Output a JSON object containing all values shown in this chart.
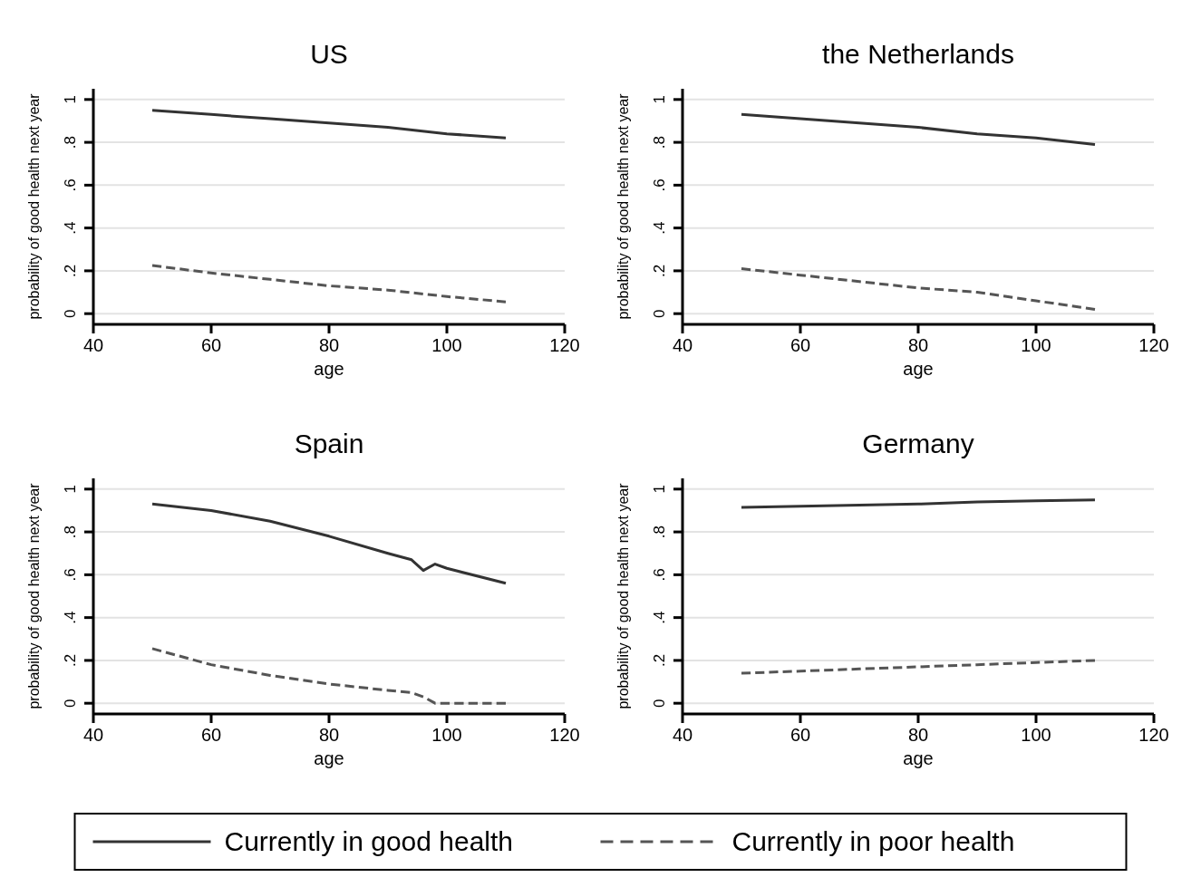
{
  "chart_data": [
    {
      "type": "line",
      "title": "US",
      "xlabel": "age",
      "ylabel": "probability of good health next year",
      "xlim": [
        40,
        120
      ],
      "xticks": [
        40,
        60,
        80,
        100,
        120
      ],
      "ylim": [
        -0.05,
        1.05
      ],
      "yticks": [
        {
          "value": 0,
          "label": "0"
        },
        {
          "value": 0.2,
          "label": ".2"
        },
        {
          "value": 0.4,
          "label": ".4"
        },
        {
          "value": 0.6,
          "label": ".6"
        },
        {
          "value": 0.8,
          "label": ".8"
        },
        {
          "value": 1,
          "label": "1"
        }
      ],
      "grid": "y",
      "legend": "bottom",
      "x": [
        50,
        60,
        70,
        80,
        90,
        100,
        110
      ],
      "series": [
        {
          "name": "Currently in good health",
          "color": "#333333",
          "line_style": "solid",
          "values": [
            0.95,
            0.93,
            0.91,
            0.89,
            0.87,
            0.84,
            0.82
          ]
        },
        {
          "name": "Currently in poor health",
          "color": "#555555",
          "line_style": "dashed",
          "values": [
            0.225,
            0.19,
            0.16,
            0.13,
            0.11,
            0.08,
            0.055
          ]
        }
      ]
    },
    {
      "type": "line",
      "title": "the Netherlands",
      "xlabel": "age",
      "ylabel": "probability of good health next year",
      "xlim": [
        40,
        120
      ],
      "xticks": [
        40,
        60,
        80,
        100,
        120
      ],
      "ylim": [
        -0.05,
        1.05
      ],
      "yticks": [
        {
          "value": 0,
          "label": "0"
        },
        {
          "value": 0.2,
          "label": ".2"
        },
        {
          "value": 0.4,
          "label": ".4"
        },
        {
          "value": 0.6,
          "label": ".6"
        },
        {
          "value": 0.8,
          "label": ".8"
        },
        {
          "value": 1,
          "label": "1"
        }
      ],
      "grid": "y",
      "x": [
        50,
        60,
        70,
        80,
        90,
        100,
        110
      ],
      "series": [
        {
          "color": "#333333",
          "line_style": "solid",
          "values": [
            0.93,
            0.91,
            0.89,
            0.87,
            0.84,
            0.82,
            0.79
          ]
        },
        {
          "color": "#555555",
          "line_style": "dashed",
          "values": [
            0.21,
            0.18,
            0.15,
            0.12,
            0.1,
            0.06,
            0.02
          ]
        }
      ]
    },
    {
      "type": "line",
      "title": "Spain",
      "xlabel": "age",
      "ylabel": "probability of good health next year",
      "xlim": [
        40,
        120
      ],
      "xticks": [
        40,
        60,
        80,
        100,
        120
      ],
      "ylim": [
        -0.05,
        1.05
      ],
      "yticks": [
        {
          "value": 0,
          "label": "0"
        },
        {
          "value": 0.2,
          "label": ".2"
        },
        {
          "value": 0.4,
          "label": ".4"
        },
        {
          "value": 0.6,
          "label": ".6"
        },
        {
          "value": 0.8,
          "label": ".8"
        },
        {
          "value": 1,
          "label": "1"
        }
      ],
      "grid": "y",
      "x": [
        50,
        60,
        70,
        80,
        90,
        94,
        96,
        98,
        100,
        110
      ],
      "series": [
        {
          "color": "#333333",
          "line_style": "solid",
          "values": [
            0.93,
            0.9,
            0.85,
            0.78,
            0.7,
            0.67,
            0.62,
            0.65,
            0.63,
            0.56
          ]
        },
        {
          "color": "#555555",
          "line_style": "dashed",
          "values": [
            0.255,
            0.18,
            0.13,
            0.09,
            0.06,
            0.05,
            0.03,
            0.0,
            0.0,
            0.0
          ]
        }
      ]
    },
    {
      "type": "line",
      "title": "Germany",
      "xlabel": "age",
      "ylabel": "probability of good health next year",
      "xlim": [
        40,
        120
      ],
      "xticks": [
        40,
        60,
        80,
        100,
        120
      ],
      "ylim": [
        -0.05,
        1.05
      ],
      "yticks": [
        {
          "value": 0,
          "label": "0"
        },
        {
          "value": 0.2,
          "label": ".2"
        },
        {
          "value": 0.4,
          "label": ".4"
        },
        {
          "value": 0.6,
          "label": ".6"
        },
        {
          "value": 0.8,
          "label": ".8"
        },
        {
          "value": 1,
          "label": "1"
        }
      ],
      "grid": "y",
      "x": [
        50,
        60,
        70,
        80,
        90,
        100,
        110
      ],
      "series": [
        {
          "color": "#333333",
          "line_style": "solid",
          "values": [
            0.915,
            0.92,
            0.925,
            0.93,
            0.94,
            0.945,
            0.95
          ]
        },
        {
          "color": "#555555",
          "line_style": "dashed",
          "values": [
            0.14,
            0.15,
            0.16,
            0.17,
            0.18,
            0.19,
            0.2
          ]
        }
      ]
    }
  ]
}
